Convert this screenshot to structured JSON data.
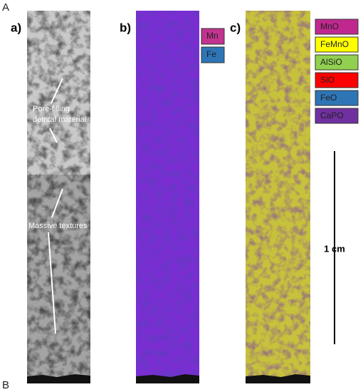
{
  "corner_labels": [
    "A",
    "B"
  ],
  "panels": [
    {
      "label": "a)",
      "annotations": [
        [
          "Pore-filling",
          "detrital material"
        ],
        [
          "Massive textures"
        ]
      ]
    },
    {
      "label": "b)",
      "legend": [
        "Mn",
        "Fe"
      ]
    },
    {
      "label": "c)",
      "legend": [
        "MnO",
        "FeMnO",
        "AlSiO",
        "SiO",
        "FeO",
        "CaPO"
      ]
    }
  ],
  "scale_bar": "1 cm"
}
